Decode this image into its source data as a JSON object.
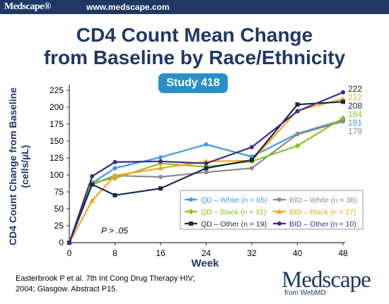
{
  "header": {
    "brand": "Medscape®",
    "url": "www.medscape.com"
  },
  "slide": {
    "title_line1": "CD4 Count Mean Change",
    "title_line2": "from Baseline by Race/Ethnicity",
    "badge": "Study 418",
    "footnote_line1": "Easterbrook P et al. 7th Int Cong Drug Therapy HIV;",
    "footnote_line2": "2004; Glasgow.  Abstract P15.",
    "p_value": "P > .05"
  },
  "logo": {
    "word": "Medscape",
    "sub": "from WebMD"
  },
  "chart_data": {
    "type": "line",
    "xlabel": "Week",
    "ylabel_line1": "CD4 Count Change from Baseline",
    "ylabel_line2": "(cells/µL)",
    "x": [
      0,
      4,
      8,
      16,
      24,
      32,
      40,
      48
    ],
    "x_ticks": [
      0,
      8,
      16,
      24,
      32,
      40,
      48
    ],
    "xlim": [
      0,
      48
    ],
    "y_ticks": [
      0,
      25,
      50,
      75,
      100,
      125,
      150,
      175,
      200,
      225
    ],
    "ylim": [
      0,
      225
    ],
    "grid": false,
    "legend_position": "bottom-right",
    "series": [
      {
        "name": "QD – White (n = 65)",
        "color": "#3d9be9",
        "marker": "circle",
        "values": [
          0,
          88,
          110,
          126,
          145,
          127,
          161,
          181
        ],
        "end_label": "181"
      },
      {
        "name": "BID – White (n = 38)",
        "color": "#8a8a8a",
        "marker": "circle",
        "values": [
          0,
          86,
          99,
          97,
          104,
          110,
          160,
          179
        ],
        "end_label": "179"
      },
      {
        "name": "QD – Black (n = 31)",
        "color": "#8dc21f",
        "marker": "diamond",
        "values": [
          0,
          89,
          95,
          117,
          112,
          120,
          143,
          184
        ],
        "end_label": "184"
      },
      {
        "name": "BID – Black (n = 27)",
        "color": "#f5a623",
        "marker": "triangle",
        "values": [
          0,
          62,
          99,
          110,
          120,
          121,
          195,
          212
        ],
        "end_label": "212"
      },
      {
        "name": "QD – Other (n = 19)",
        "color": "#162a4a",
        "marker": "square",
        "values": [
          0,
          86,
          70,
          80,
          110,
          122,
          204,
          208
        ],
        "end_label": "208"
      },
      {
        "name": "BID – Other (n = 10)",
        "color": "#3b2a8c",
        "marker": "circle",
        "values": [
          0,
          98,
          119,
          120,
          117,
          141,
          194,
          222
        ],
        "end_label": "222"
      }
    ]
  }
}
